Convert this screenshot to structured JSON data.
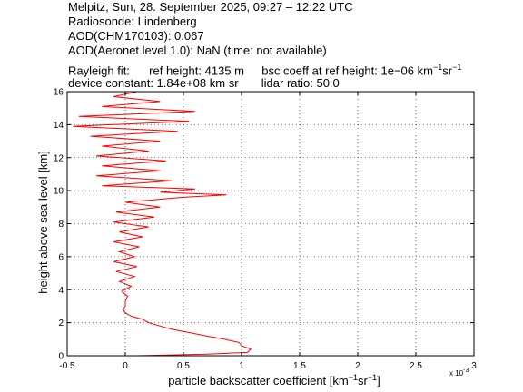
{
  "header": {
    "line1": "Melpitz, Sun, 28. September 2025, 09:27 – 12:22 UTC",
    "line2": "Radiosonde: Lindenberg",
    "line3": "AOD(CHM170103): 0.067",
    "line4": "AOD(Aeronet level 1.0): NaN   (time: not available)",
    "line5a": "Rayleigh fit:",
    "line5b": "ref height: 4135 m",
    "line5c": "bsc coeff at ref height: 1e−06 km",
    "line5_sup1": "−1",
    "line5_sr": "sr",
    "line5_sup2": "−1",
    "line6a": "device constant: 1.84e+08 km sr",
    "line6b": "lidar ratio: 50.0"
  },
  "chart_data": {
    "type": "line",
    "title": "",
    "xlabel": "particle backscatter coefficient [km",
    "xlabel_sup1": "−1",
    "xlabel_sr": "sr",
    "xlabel_sup2": "−1",
    "xlabel_end": "]",
    "ylabel": "height above sea level [km]",
    "x_scale_note": "x 10",
    "x_scale_exp": "-3",
    "xlim": [
      -0.5,
      3
    ],
    "ylim": [
      0,
      16
    ],
    "xticks": [
      -0.5,
      0,
      0.5,
      1,
      1.5,
      2,
      2.5,
      3
    ],
    "xtick_labels": [
      "-0.5",
      "0",
      "0.5",
      "1",
      "1.5",
      "2",
      "2.5",
      "3"
    ],
    "yticks": [
      0,
      2,
      4,
      6,
      8,
      10,
      12,
      14,
      16
    ],
    "ytick_labels": [
      "0",
      "2",
      "4",
      "6",
      "8",
      "10",
      "12",
      "14",
      "16"
    ],
    "grid": true,
    "line_color": "#ff0000",
    "series": [
      {
        "points": [
          [
            0.1,
            0.0
          ],
          [
            0.7,
            0.1
          ],
          [
            1.05,
            0.2
          ],
          [
            1.08,
            0.4
          ],
          [
            1.0,
            0.6
          ],
          [
            0.98,
            0.8
          ],
          [
            0.85,
            1.0
          ],
          [
            0.7,
            1.2
          ],
          [
            0.55,
            1.4
          ],
          [
            0.4,
            1.6
          ],
          [
            0.3,
            1.8
          ],
          [
            0.2,
            2.0
          ],
          [
            0.15,
            2.2
          ],
          [
            0.05,
            2.4
          ],
          [
            0.0,
            2.6
          ],
          [
            -0.02,
            2.8
          ],
          [
            0.0,
            3.0
          ],
          [
            0.0,
            3.3
          ],
          [
            0.02,
            3.6
          ],
          [
            -0.03,
            3.9
          ],
          [
            0.05,
            4.2
          ],
          [
            -0.05,
            4.5
          ],
          [
            0.08,
            4.8
          ],
          [
            -0.08,
            5.1
          ],
          [
            0.1,
            5.4
          ],
          [
            -0.1,
            5.7
          ],
          [
            0.08,
            6.0
          ],
          [
            -0.05,
            6.3
          ],
          [
            0.12,
            6.6
          ],
          [
            -0.1,
            6.9
          ],
          [
            0.15,
            7.2
          ],
          [
            -0.05,
            7.5
          ],
          [
            0.2,
            7.8
          ],
          [
            -0.1,
            8.1
          ],
          [
            0.25,
            8.4
          ],
          [
            -0.08,
            8.7
          ],
          [
            0.3,
            9.0
          ],
          [
            0.0,
            9.3
          ],
          [
            0.5,
            9.6
          ],
          [
            0.87,
            9.75
          ],
          [
            0.3,
            9.9
          ],
          [
            0.6,
            10.1
          ],
          [
            -0.2,
            10.3
          ],
          [
            0.4,
            10.6
          ],
          [
            -0.25,
            10.9
          ],
          [
            0.3,
            11.2
          ],
          [
            -0.2,
            11.5
          ],
          [
            0.35,
            11.8
          ],
          [
            -0.25,
            12.1
          ],
          [
            0.2,
            12.4
          ],
          [
            -0.2,
            12.7
          ],
          [
            0.3,
            13.0
          ],
          [
            -0.3,
            13.3
          ],
          [
            0.45,
            13.6
          ],
          [
            -0.45,
            13.9
          ],
          [
            0.55,
            14.2
          ],
          [
            -0.4,
            14.5
          ],
          [
            0.6,
            14.8
          ],
          [
            -0.2,
            15.1
          ],
          [
            0.3,
            15.4
          ],
          [
            -0.1,
            15.7
          ],
          [
            0.1,
            16.0
          ]
        ]
      }
    ]
  }
}
